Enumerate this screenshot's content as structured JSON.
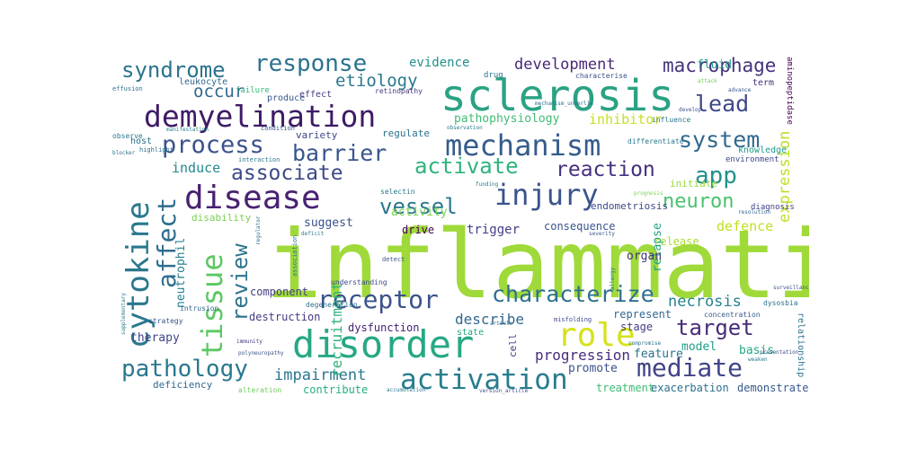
{
  "word_cloud": {
    "colors": {
      "background": "#ffffff"
    },
    "words": [
      {
        "text": "inflammation",
        "color": "#9fda3a"
      },
      {
        "text": "sclerosis",
        "color": "#2aa283"
      },
      {
        "text": "disorder",
        "color": "#26a884"
      },
      {
        "text": "demyelination",
        "color": "#3e1b66"
      },
      {
        "text": "disease",
        "color": "#482271"
      },
      {
        "text": "mechanism",
        "color": "#355c8d"
      },
      {
        "text": "cytokine",
        "color": "#2a788e"
      },
      {
        "text": "tissue",
        "color": "#5cc863"
      },
      {
        "text": "activation",
        "color": "#287d8e"
      },
      {
        "text": "injury",
        "color": "#3a548c"
      },
      {
        "text": "role",
        "color": "#d5e21a"
      },
      {
        "text": "pathology",
        "color": "#2a788e"
      },
      {
        "text": "mediate",
        "color": "#414487"
      },
      {
        "text": "receptor",
        "color": "#3b528b"
      },
      {
        "text": "characterize",
        "color": "#2d708e"
      },
      {
        "text": "response",
        "color": "#2c728e"
      },
      {
        "text": "process",
        "color": "#3b528b"
      },
      {
        "text": "syndrome",
        "color": "#2b748e"
      },
      {
        "text": "barrier",
        "color": "#39568c"
      },
      {
        "text": "affect",
        "color": "#2e6e8e"
      },
      {
        "text": "activate",
        "color": "#2fb47c"
      },
      {
        "text": "reaction",
        "color": "#46307e"
      },
      {
        "text": "system",
        "color": "#31688e"
      },
      {
        "text": "associate",
        "color": "#3e4a89"
      },
      {
        "text": "vessel",
        "color": "#2a788e"
      },
      {
        "text": "app",
        "color": "#21918c"
      },
      {
        "text": "neuron",
        "color": "#4ac16d"
      },
      {
        "text": "target",
        "color": "#472c7a"
      },
      {
        "text": "review",
        "color": "#2c738e"
      },
      {
        "text": "macrophage",
        "color": "#46327e"
      },
      {
        "text": "lead",
        "color": "#3f4889"
      },
      {
        "text": "etiology",
        "color": "#2a788e"
      },
      {
        "text": "occur",
        "color": "#31688e"
      },
      {
        "text": "development",
        "color": "#482878"
      },
      {
        "text": "impairment",
        "color": "#2a768e"
      },
      {
        "text": "necrosis",
        "color": "#26828e"
      },
      {
        "text": "expression",
        "color": "#bddf26"
      },
      {
        "text": "recruitment",
        "color": "#2eb37c"
      },
      {
        "text": "defence",
        "color": "#c2df23"
      },
      {
        "text": "progression",
        "color": "#472d7b"
      },
      {
        "text": "describe",
        "color": "#31688e"
      },
      {
        "text": "activity",
        "color": "#7ad151"
      },
      {
        "text": "induce",
        "color": "#24878e"
      },
      {
        "text": "evidence",
        "color": "#21918c"
      },
      {
        "text": "pathophysiology",
        "color": "#3fbc73"
      },
      {
        "text": "inhibitor",
        "color": "#c8e020"
      },
      {
        "text": "suggest",
        "color": "#3b528b"
      },
      {
        "text": "trigger",
        "color": "#424086"
      },
      {
        "text": "consequence",
        "color": "#3a548c"
      },
      {
        "text": "neutrophil",
        "color": "#26828e"
      },
      {
        "text": "component",
        "color": "#433e85"
      },
      {
        "text": "therapy",
        "color": "#404688"
      },
      {
        "text": "destruction",
        "color": "#443a83"
      },
      {
        "text": "dysfunction",
        "color": "#482173"
      },
      {
        "text": "represent",
        "color": "#31688e"
      },
      {
        "text": "model",
        "color": "#1f9e89"
      },
      {
        "text": "promote",
        "color": "#3b528b"
      },
      {
        "text": "feature",
        "color": "#2c728e"
      },
      {
        "text": "contribute",
        "color": "#27ad81"
      },
      {
        "text": "relapse",
        "color": "#20a386"
      },
      {
        "text": "release",
        "color": "#aadc32"
      },
      {
        "text": "stage",
        "color": "#433d84"
      },
      {
        "text": "basis",
        "color": "#22a884"
      },
      {
        "text": "treatment",
        "color": "#3dbc74"
      },
      {
        "text": "exacerbation",
        "color": "#2d708e"
      },
      {
        "text": "demonstrate",
        "color": "#38598c"
      },
      {
        "text": "deficiency",
        "color": "#31688e"
      },
      {
        "text": "organ",
        "color": "#46307e"
      },
      {
        "text": "drive",
        "color": "#440154"
      },
      {
        "text": "endometriosis",
        "color": "#3e4a89"
      },
      {
        "text": "initiate",
        "color": "#9bd93c"
      },
      {
        "text": "fluid",
        "color": "#1fa088"
      },
      {
        "text": "variety",
        "color": "#404588"
      },
      {
        "text": "regulate",
        "color": "#2c728e"
      },
      {
        "text": "leukocyte",
        "color": "#31688e"
      },
      {
        "text": "produce",
        "color": "#39568c"
      },
      {
        "text": "effect",
        "color": "#453882"
      },
      {
        "text": "disability",
        "color": "#7ad151"
      },
      {
        "text": "knowledge",
        "color": "#1f9a8a"
      },
      {
        "text": "environment",
        "color": "#3f4788"
      },
      {
        "text": "diagnosis",
        "color": "#424086"
      },
      {
        "text": "term",
        "color": "#46327e"
      },
      {
        "text": "relationship",
        "color": "#2c728e"
      },
      {
        "text": "drug",
        "color": "#2a788e"
      },
      {
        "text": "retinopathy",
        "color": "#453781"
      },
      {
        "text": "host",
        "color": "#2d708e"
      },
      {
        "text": "failure",
        "color": "#32b67a"
      },
      {
        "text": "selectin",
        "color": "#2a788e"
      },
      {
        "text": "characterise",
        "color": "#3b528b"
      },
      {
        "text": "differentiate",
        "color": "#2a788e"
      },
      {
        "text": "concentration",
        "color": "#38598c"
      },
      {
        "text": "degeneration",
        "color": "#2c728e"
      },
      {
        "text": "understanding",
        "color": "#3e4c8a"
      },
      {
        "text": "strategy",
        "color": "#3b528b"
      },
      {
        "text": "intrusion",
        "color": "#31688e"
      },
      {
        "text": "observe",
        "color": "#2a788e"
      },
      {
        "text": "alteration",
        "color": "#6ccd5a"
      },
      {
        "text": "condition",
        "color": "#39568c"
      },
      {
        "text": "association",
        "color": "#2a788e"
      },
      {
        "text": "dysosbia",
        "color": "#2d708e"
      },
      {
        "text": "state",
        "color": "#22a884"
      },
      {
        "text": "interaction",
        "color": "#2a788e"
      },
      {
        "text": "cell",
        "color": "#424086"
      },
      {
        "text": "detect",
        "color": "#3b528b"
      },
      {
        "text": "highlight",
        "color": "#2c728e"
      },
      {
        "text": "manifestation",
        "color": "#26828e"
      },
      {
        "text": "influence",
        "color": "#2a788e"
      },
      {
        "text": "polyneuropathy",
        "color": "#3b528b"
      },
      {
        "text": "effusion",
        "color": "#2c728e"
      },
      {
        "text": "supplementary",
        "color": "#2a788e"
      },
      {
        "text": "immunity",
        "color": "#443a83"
      },
      {
        "text": "misfolding",
        "color": "#3e4a89"
      },
      {
        "text": "compromise",
        "color": "#2c728e"
      },
      {
        "text": "prognosis",
        "color": "#7ad151"
      },
      {
        "text": "allergy",
        "color": "#2a788e"
      },
      {
        "text": "severity",
        "color": "#3b528b"
      },
      {
        "text": "article",
        "color": "#2d708e"
      },
      {
        "text": "version_article",
        "color": "#3b528b"
      },
      {
        "text": "accumulation",
        "color": "#2a788e"
      },
      {
        "text": "aminopeptidase",
        "color": "#440154"
      },
      {
        "text": "mechanism_underlie",
        "color": "#2c728e"
      },
      {
        "text": "observation",
        "color": "#2a788e"
      },
      {
        "text": "presentation",
        "color": "#3b528b"
      },
      {
        "text": "resolution",
        "color": "#31688e"
      },
      {
        "text": "advance",
        "color": "#39568c"
      },
      {
        "text": "attack",
        "color": "#6ccd5a"
      },
      {
        "text": "develop",
        "color": "#3b528b"
      },
      {
        "text": "blocker",
        "color": "#2c728e"
      },
      {
        "text": "weaken",
        "color": "#2a788e"
      },
      {
        "text": "funding",
        "color": "#2a788e"
      },
      {
        "text": "surveillance",
        "color": "#3b528b"
      },
      {
        "text": "regulator",
        "color": "#2c728e"
      },
      {
        "text": "deficit",
        "color": "#2a788e"
      }
    ]
  }
}
